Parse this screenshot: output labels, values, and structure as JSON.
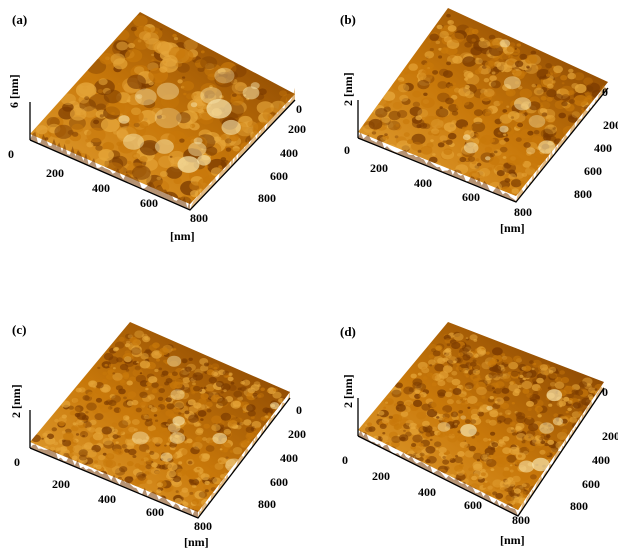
{
  "figure": {
    "panels": [
      {
        "label": "(a)",
        "z_label": "6 [nm]",
        "zero_label": "0",
        "x_ticks": [
          "200",
          "400",
          "600",
          "800"
        ],
        "y_ticks": [
          "0",
          "200",
          "400",
          "600",
          "800"
        ],
        "unit_label": "[nm]",
        "roughness_level": 1.0,
        "blob_scale": "coarse"
      },
      {
        "label": "(b)",
        "z_label": "2 [nm]",
        "zero_label": "0",
        "x_ticks": [
          "200",
          "400",
          "600",
          "800"
        ],
        "y_ticks": [
          "0",
          "200",
          "400",
          "600",
          "800"
        ],
        "unit_label": "[nm]",
        "roughness_level": 0.6,
        "blob_scale": "medium"
      },
      {
        "label": "(c)",
        "z_label": "2 [nm]",
        "zero_label": "0",
        "x_ticks": [
          "200",
          "400",
          "600",
          "800"
        ],
        "y_ticks": [
          "0",
          "200",
          "400",
          "600",
          "800"
        ],
        "unit_label": "[nm]",
        "roughness_level": 0.55,
        "blob_scale": "fine"
      },
      {
        "label": "(d)",
        "z_label": "2 [nm]",
        "zero_label": "0",
        "x_ticks": [
          "200",
          "400",
          "600",
          "800"
        ],
        "y_ticks": [
          "0",
          "200",
          "400",
          "600",
          "800"
        ],
        "unit_label": "[nm]",
        "roughness_level": 0.45,
        "blob_scale": "fine"
      }
    ],
    "colors": {
      "dark": "#7a3a00",
      "mid": "#c8780a",
      "light": "#e6a63a",
      "highlight": "#f6e2a8"
    }
  }
}
